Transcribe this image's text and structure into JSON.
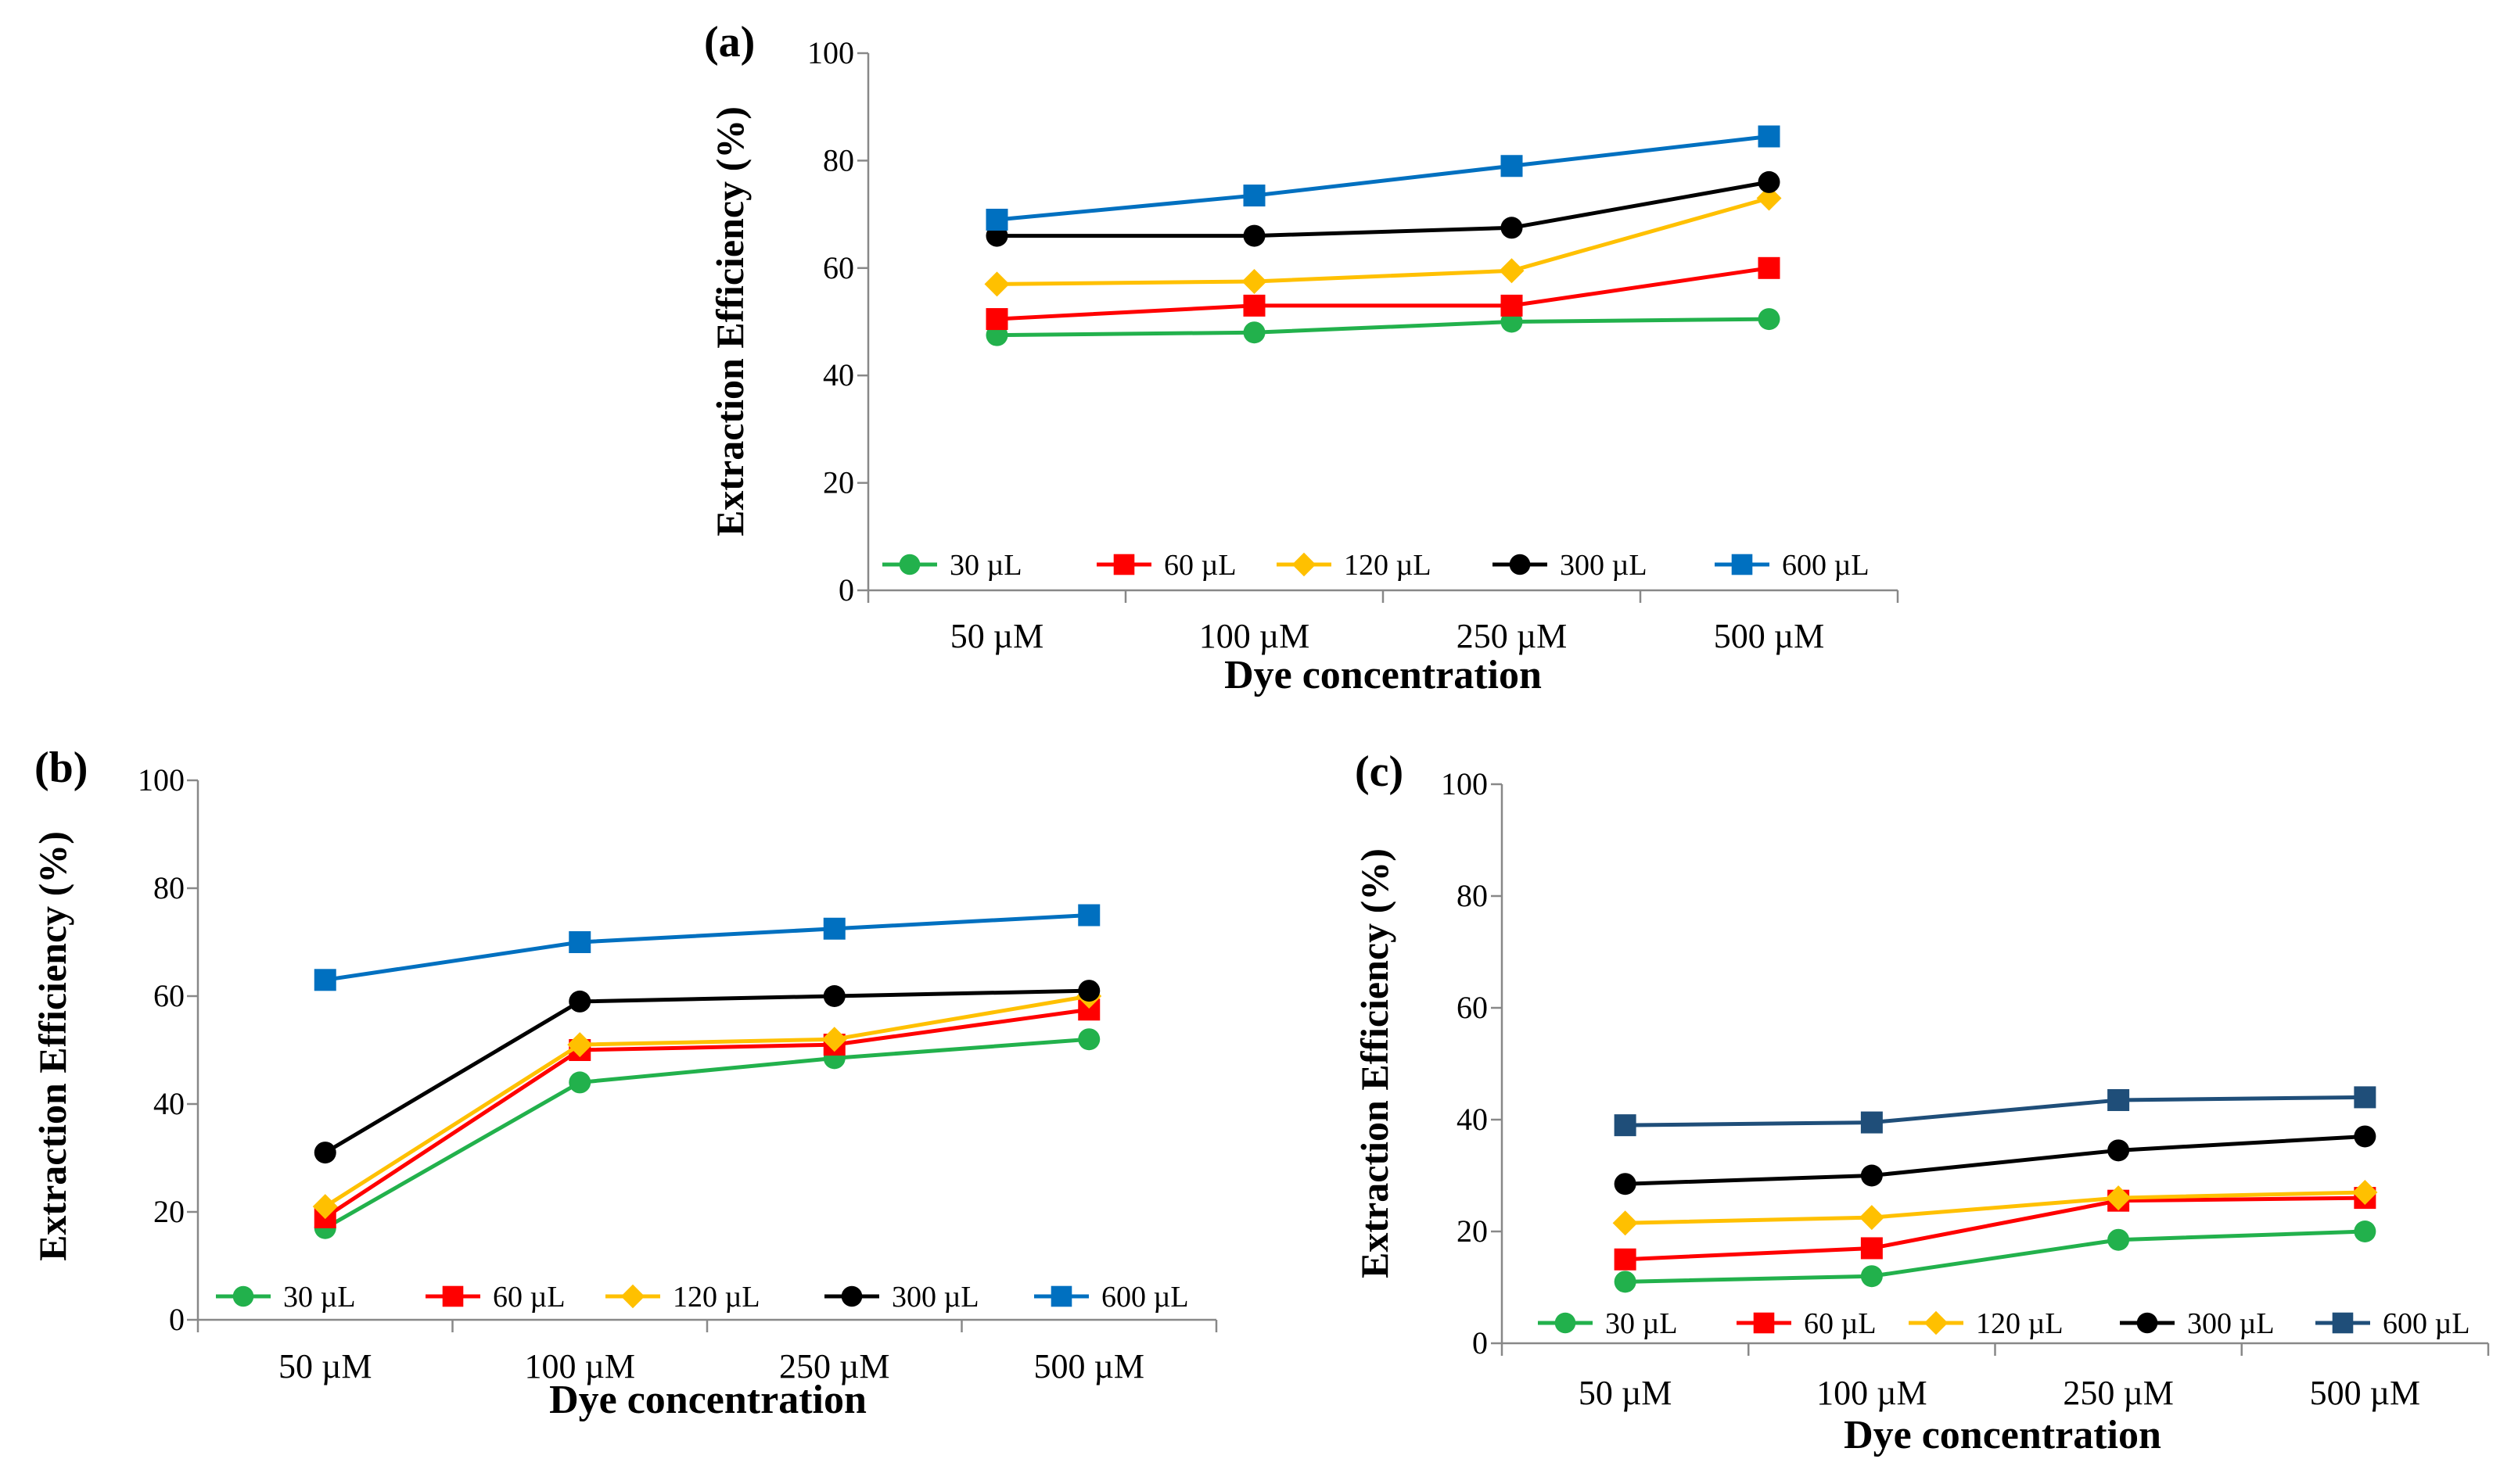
{
  "figure": {
    "colors": {
      "30 µL": "#22b14c",
      "60 µL": "#ff0000",
      "120 µL": "#ffc000",
      "300 µL": "#000000",
      "600 µL": "#0070c0",
      "600 µL (c)": "#1f4e79"
    }
  },
  "chart_data": [
    {
      "panel": "(a)",
      "type": "line",
      "title": "",
      "xlabel": "Dye concentration",
      "ylabel": "Extraction Efficiency (%)",
      "ylim": [
        0,
        100
      ],
      "yticks": [
        "0",
        "20",
        "40",
        "60",
        "80",
        "100"
      ],
      "categories": [
        "50 µM",
        "100 µM",
        "250 µM",
        "500 µM"
      ],
      "legend_position": "bottom-inside",
      "series": [
        {
          "name": "30 µL",
          "marker": "circle",
          "color": "#22b14c",
          "values": [
            47.5,
            48,
            50,
            50.5
          ]
        },
        {
          "name": "60 µL",
          "marker": "square",
          "color": "#ff0000",
          "values": [
            50.5,
            53,
            53,
            60
          ]
        },
        {
          "name": "120 µL",
          "marker": "diamond",
          "color": "#ffc000",
          "values": [
            57,
            57.5,
            59.5,
            73
          ]
        },
        {
          "name": "300 µL",
          "marker": "circle",
          "color": "#000000",
          "values": [
            66,
            66,
            67.5,
            76
          ]
        },
        {
          "name": "600 µL",
          "marker": "square",
          "color": "#0070c0",
          "values": [
            69,
            73.5,
            79,
            84.5
          ]
        }
      ]
    },
    {
      "panel": "(b)",
      "type": "line",
      "title": "",
      "xlabel": "Dye concentration",
      "ylabel": "Extraction Efficiency (%)",
      "ylim": [
        0,
        100
      ],
      "yticks": [
        "0",
        "20",
        "40",
        "60",
        "80",
        "100"
      ],
      "categories": [
        "50 µM",
        "100 µM",
        "250 µM",
        "500 µM"
      ],
      "legend_position": "bottom-inside",
      "series": [
        {
          "name": "30 µL",
          "marker": "circle",
          "color": "#22b14c",
          "values": [
            17,
            44,
            48.5,
            52
          ]
        },
        {
          "name": "60 µL",
          "marker": "square",
          "color": "#ff0000",
          "values": [
            19,
            50,
            51,
            57.5
          ]
        },
        {
          "name": "120 µL",
          "marker": "diamond",
          "color": "#ffc000",
          "values": [
            21,
            51,
            52,
            60
          ]
        },
        {
          "name": "300 µL",
          "marker": "circle",
          "color": "#000000",
          "values": [
            31,
            59,
            60,
            61
          ]
        },
        {
          "name": "600 µL",
          "marker": "square",
          "color": "#0070c0",
          "values": [
            63,
            70,
            72.5,
            75
          ]
        }
      ]
    },
    {
      "panel": "(c)",
      "type": "line",
      "title": "",
      "xlabel": "Dye concentration",
      "ylabel": "Extraction Efficiency (%)",
      "ylim": [
        0,
        100
      ],
      "yticks": [
        "0",
        "20",
        "40",
        "60",
        "80",
        "100"
      ],
      "categories": [
        "50 µM",
        "100 µM",
        "250 µM",
        "500 µM"
      ],
      "legend_position": "bottom-inside",
      "series": [
        {
          "name": "30 µL",
          "marker": "circle",
          "color": "#22b14c",
          "values": [
            11,
            12,
            18.5,
            20
          ]
        },
        {
          "name": "60 µL",
          "marker": "square",
          "color": "#ff0000",
          "values": [
            15,
            17,
            25.5,
            26
          ]
        },
        {
          "name": "120 µL",
          "marker": "diamond",
          "color": "#ffc000",
          "values": [
            21.5,
            22.5,
            26,
            27
          ]
        },
        {
          "name": "300 µL",
          "marker": "circle",
          "color": "#000000",
          "values": [
            28.5,
            30,
            34.5,
            37
          ]
        },
        {
          "name": "600 µL",
          "marker": "square",
          "color": "#1f4e79",
          "values": [
            39,
            39.5,
            43.5,
            44
          ]
        }
      ]
    }
  ]
}
